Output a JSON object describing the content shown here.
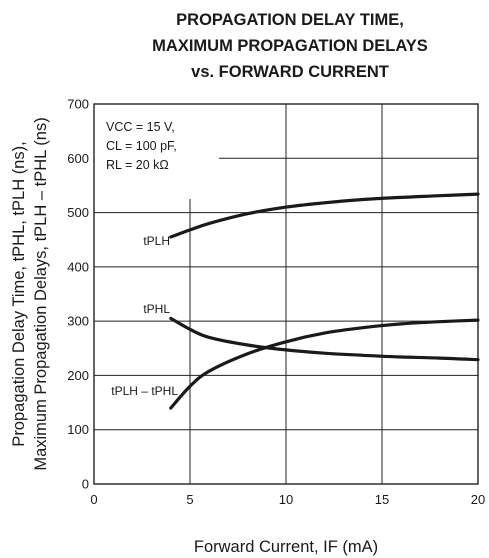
{
  "chart_data": {
    "type": "line",
    "title_lines": [
      "PROPAGATION DELAY TIME,",
      "MAXIMUM PROPAGATION DELAYS",
      "vs. FORWARD CURRENT"
    ],
    "xlabel": "Forward Current, IF (mA)",
    "ylabel_lines": [
      "Propagation Delay Time, tPHL, tPLH (ns),",
      "Maximum Propagation Delays, tPLH – tPHL (ns)"
    ],
    "xlim": [
      0,
      20
    ],
    "ylim": [
      0,
      700
    ],
    "xticks": [
      0,
      5,
      10,
      15,
      20
    ],
    "yticks": [
      0,
      100,
      200,
      300,
      400,
      500,
      600,
      700
    ],
    "grid": true,
    "conditions": [
      "VCC = 15 V,",
      "CL = 100 pF,",
      "RL = 20 kΩ"
    ],
    "series": [
      {
        "name": "tPLH",
        "x": [
          4,
          5,
          6,
          8,
          10,
          12,
          14,
          16,
          18,
          20
        ],
        "y": [
          455,
          468,
          480,
          498,
          510,
          518,
          524,
          528,
          531,
          534
        ]
      },
      {
        "name": "tPHL",
        "x": [
          4,
          5,
          6,
          8,
          10,
          12,
          14,
          16,
          18,
          20
        ],
        "y": [
          305,
          285,
          270,
          256,
          247,
          241,
          237,
          234,
          232,
          229
        ]
      },
      {
        "name": "tPLH – tPHL",
        "x": [
          4,
          5,
          6,
          8,
          10,
          12,
          14,
          16,
          18,
          20
        ],
        "y": [
          140,
          180,
          208,
          240,
          262,
          278,
          288,
          295,
          299,
          302
        ]
      }
    ]
  }
}
